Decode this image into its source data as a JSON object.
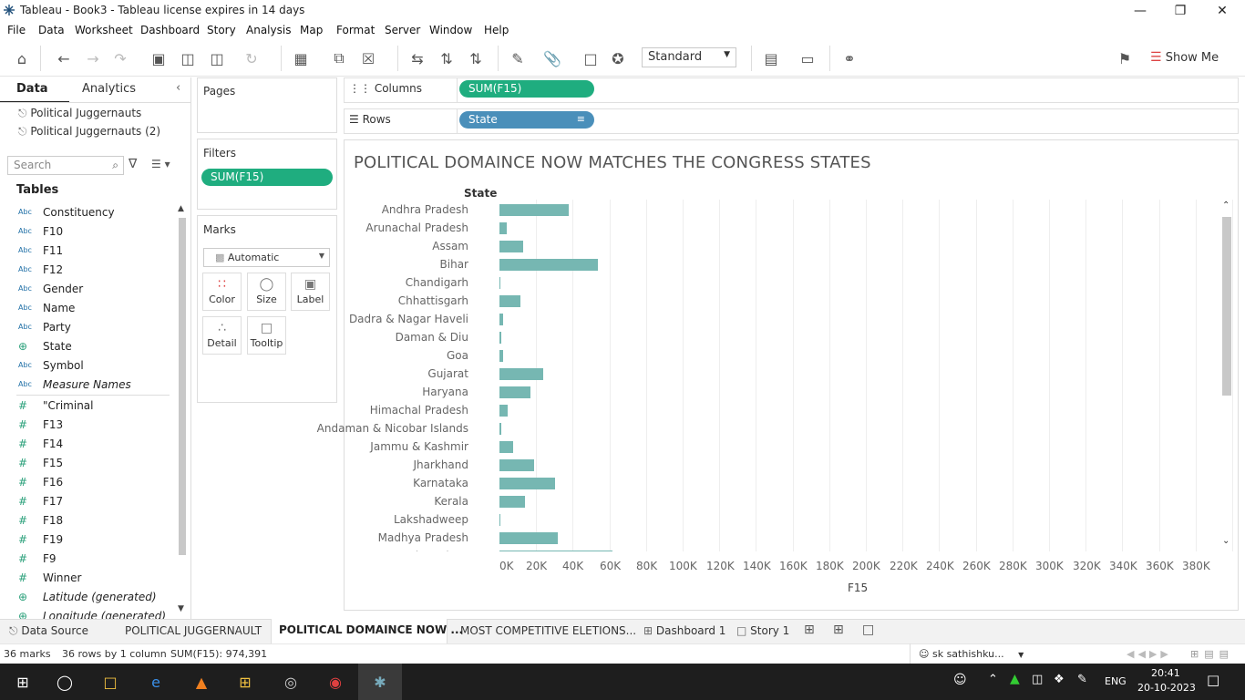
{
  "window": {
    "title": "Tableau - Book3 - Tableau license expires in 14 days"
  },
  "menu": [
    "File",
    "Data",
    "Worksheet",
    "Dashboard",
    "Story",
    "Analysis",
    "Map",
    "Format",
    "Server",
    "Window",
    "Help"
  ],
  "toolbar": {
    "standard": "Standard",
    "show_me": "Show Me"
  },
  "left_pane": {
    "tab_data": "Data",
    "tab_analytics": "Analytics",
    "datasources": [
      "Political Juggernauts",
      "Political Juggernauts (2)"
    ],
    "search_placeholder": "Search",
    "tables_header": "Tables",
    "dimensions": [
      {
        "type": "Abc",
        "name": "Constituency"
      },
      {
        "type": "Abc",
        "name": "F10"
      },
      {
        "type": "Abc",
        "name": "F11"
      },
      {
        "type": "Abc",
        "name": "F12"
      },
      {
        "type": "Abc",
        "name": "Gender"
      },
      {
        "type": "Abc",
        "name": "Name"
      },
      {
        "type": "Abc",
        "name": "Party"
      },
      {
        "type": "geo",
        "name": "State"
      },
      {
        "type": "Abc",
        "name": "Symbol"
      },
      {
        "type": "Abc",
        "name": "Measure Names"
      }
    ],
    "measures": [
      {
        "type": "#",
        "name": "\"Criminal"
      },
      {
        "type": "#",
        "name": "F13"
      },
      {
        "type": "#",
        "name": "F14"
      },
      {
        "type": "#",
        "name": "F15"
      },
      {
        "type": "#",
        "name": "F16"
      },
      {
        "type": "#",
        "name": "F17"
      },
      {
        "type": "#",
        "name": "F18"
      },
      {
        "type": "#",
        "name": "F19"
      },
      {
        "type": "#",
        "name": "F9"
      },
      {
        "type": "#",
        "name": "Winner"
      },
      {
        "type": "geo",
        "name": "Latitude (generated)"
      },
      {
        "type": "geo",
        "name": "Longitude (generated)"
      }
    ]
  },
  "shelves": {
    "pages": "Pages",
    "filters": "Filters",
    "filter_pill": "SUM(F15)",
    "marks": "Marks",
    "mark_type": "Automatic",
    "mark_buttons": [
      "Color",
      "Size",
      "Label",
      "Detail",
      "Tooltip"
    ],
    "columns_label": "Columns",
    "columns_pill": "SUM(F15)",
    "rows_label": "Rows",
    "rows_pill": "State"
  },
  "chart_data": {
    "type": "bar",
    "title": "POLITICAL DOMAINCE NOW MATCHES THE CONGRESS STATES",
    "ylabel": "State",
    "xlabel": "F15",
    "xlim": [
      0,
      390000
    ],
    "xticks": [
      "0K",
      "20K",
      "40K",
      "60K",
      "80K",
      "100K",
      "120K",
      "140K",
      "160K",
      "180K",
      "200K",
      "220K",
      "240K",
      "260K",
      "280K",
      "300K",
      "320K",
      "340K",
      "360K",
      "380K"
    ],
    "grid": true,
    "categories": [
      "Andhra Pradesh",
      "Arunachal Pradesh",
      "Assam",
      "Bihar",
      "Chandigarh",
      "Chhattisgarh",
      "Dadra & Nagar Haveli",
      "Daman & Diu",
      "Goa",
      "Gujarat",
      "Haryana",
      "Himachal Pradesh",
      "Andaman & Nicobar Islands",
      "Jammu & Kashmir",
      "Jharkhand",
      "Karnataka",
      "Kerala",
      "Lakshadweep",
      "Madhya Pradesh",
      "Maharashtra"
    ],
    "values": [
      38000,
      4000,
      13000,
      53500,
      500,
      11500,
      2000,
      1000,
      2000,
      24000,
      17000,
      4500,
      1000,
      7500,
      19000,
      30500,
      14000,
      500,
      32000,
      61500
    ]
  },
  "sheet_tabs": [
    "Data Source",
    "POLITICAL JUGGERNAULT",
    "POLITICAL DOMAINCE NOW ...",
    "MOST COMPETITIVE ELETIONS...",
    "Dashboard 1",
    "Story 1"
  ],
  "status": {
    "marks": "36 marks",
    "rows": "36 rows by 1 column",
    "sum": "SUM(F15): 974,391",
    "user": "sk sathishku..."
  },
  "taskbar": {
    "lang": "ENG",
    "time": "20:41",
    "date": "20-10-2023"
  }
}
